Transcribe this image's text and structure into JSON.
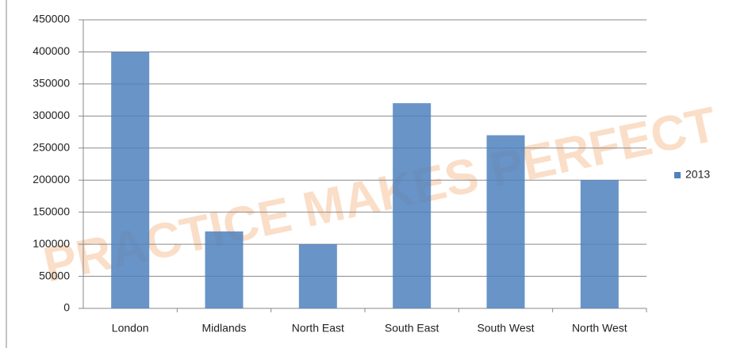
{
  "chart_data": {
    "type": "bar",
    "watermark": "PRACTICE MAKES PERFECT",
    "categories": [
      "London",
      "Midlands",
      "North East",
      "South East",
      "South West",
      "North West"
    ],
    "series": [
      {
        "name": "2013",
        "color": "#4f81bd",
        "values": [
          400000,
          120000,
          100000,
          320000,
          270000,
          200000
        ]
      }
    ],
    "ylim": [
      0,
      450000
    ],
    "yticks": [
      0,
      50000,
      100000,
      150000,
      200000,
      250000,
      300000,
      350000,
      400000,
      450000
    ],
    "grid": true,
    "legend": "right"
  }
}
